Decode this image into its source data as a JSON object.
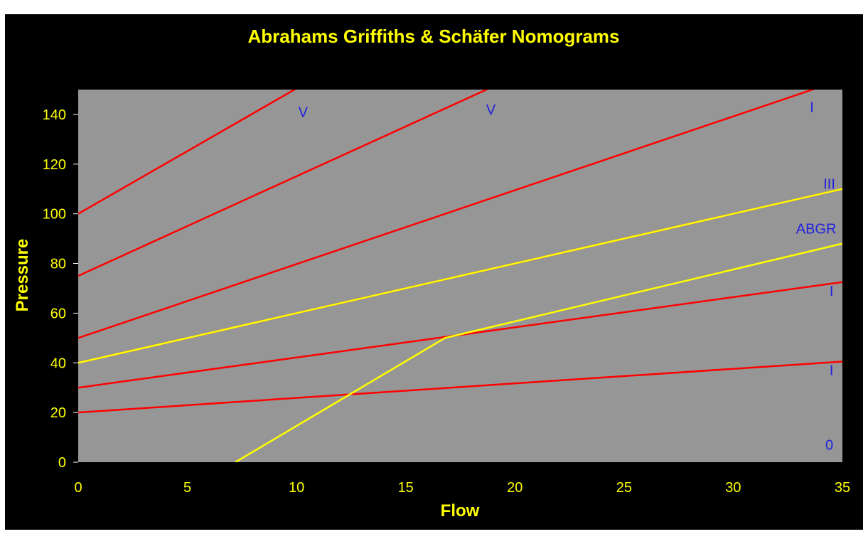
{
  "chart_data": {
    "type": "line",
    "title": "Abrahams Griffiths & Schäfer Nomograms",
    "xlabel": "Flow",
    "ylabel": "Pressure",
    "xlim": [
      0,
      35
    ],
    "ylim": [
      0,
      150
    ],
    "x_ticks": [
      "0",
      "5",
      "10",
      "15",
      "20",
      "25",
      "30",
      "35"
    ],
    "y_ticks": [
      "0",
      "20",
      "40",
      "60",
      "80",
      "100",
      "120",
      "140"
    ],
    "grid": false,
    "legend": "none",
    "colors": {
      "page": "#000000",
      "plot_area": "#969696",
      "text": "#ffff00",
      "region_label": "#2222dd",
      "schafer_line": "#ff0000",
      "abgr_line": "#ffff00"
    },
    "series": [
      {
        "color": "#ff0000",
        "points": [
          [
            0,
            20
          ],
          [
            35,
            40.5
          ]
        ]
      },
      {
        "color": "#ff0000",
        "points": [
          [
            0,
            30
          ],
          [
            35,
            72.5
          ]
        ]
      },
      {
        "color": "#ff0000",
        "points": [
          [
            0,
            40
          ],
          [
            35,
            110
          ]
        ]
      },
      {
        "color": "#ff0000",
        "points": [
          [
            0,
            50
          ],
          [
            34.3,
            152
          ]
        ]
      },
      {
        "color": "#ff0000",
        "points": [
          [
            0,
            75
          ],
          [
            19.2,
            152
          ]
        ]
      },
      {
        "color": "#ff0000",
        "points": [
          [
            0,
            100
          ],
          [
            10.3,
            152
          ]
        ]
      },
      {
        "color": "#ffff00",
        "points": [
          [
            0,
            40
          ],
          [
            35,
            110
          ]
        ]
      },
      {
        "color": "#ffff00",
        "points": [
          [
            7.2,
            0
          ],
          [
            16.8,
            50
          ],
          [
            35,
            88
          ]
        ]
      }
    ],
    "annotations": [
      {
        "text": "V",
        "x": 10.3,
        "y": 139
      },
      {
        "text": "V",
        "x": 18.9,
        "y": 140
      },
      {
        "text": "I",
        "x": 33.6,
        "y": 141
      },
      {
        "text": "III",
        "x": 34.4,
        "y": 110
      },
      {
        "text": "ABGR",
        "x": 33.8,
        "y": 92
      },
      {
        "text": "I",
        "x": 34.5,
        "y": 67
      },
      {
        "text": "I",
        "x": 34.5,
        "y": 35
      },
      {
        "text": "0",
        "x": 34.4,
        "y": 5
      }
    ]
  }
}
